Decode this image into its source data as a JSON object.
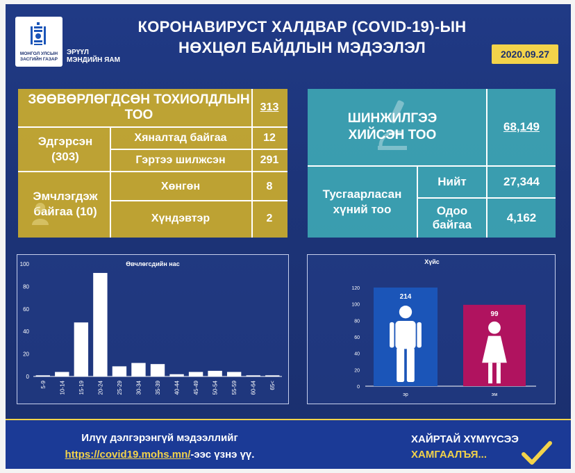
{
  "header": {
    "logo_text": "МОНГОЛ УЛСЫН ЗАСГИЙН ГАЗАР",
    "ministry": [
      "ЭРҮҮЛ",
      "МЭНДИЙН ЯАМ"
    ],
    "title_line1": "КОРОНАВИРУСТ ХАЛДВАР (COVID-19)-ЫН",
    "title_line2": "НӨХЦӨЛ БАЙДЛЫН МЭДЭЭЛЭЛ",
    "date": "2020.09.27"
  },
  "imported": {
    "title": "ЗӨӨВӨРЛӨГДСӨН ТОХИОЛДЛЫН ТОО",
    "total": "313",
    "recovered_label": "Эдгэрсэн (303)",
    "monitored_label": "Хяналтад байгаа",
    "monitored_value": "12",
    "discharged_label": "Гэртээ шилжсэн",
    "discharged_value": "291",
    "treated_label": "Эмчлэгдэж байгаа (10)",
    "mild_label": "Хөнгөн",
    "mild_value": "8",
    "severe_label": "Хүндэвтэр",
    "severe_value": "2"
  },
  "tests": {
    "title": "ШИНЖИЛГЭЭ ХИЙСЭН ТОО",
    "total": "68,149",
    "isolated_label": "Тусгаарласан хүний тоо",
    "all_label": "Нийт",
    "all_value": "27,344",
    "current_label": "Одоо байгаа",
    "current_value": "4,162"
  },
  "colors": {
    "gold": "#c9ab2e",
    "teal": "#3ea8b5",
    "male": "#1b55b8",
    "female": "#b0135f",
    "accent": "#f3d34a"
  },
  "chart_data": [
    {
      "type": "bar",
      "title": "Өвчлөгсдийн нас",
      "categories": [
        "5-9",
        "10-14",
        "15-19",
        "20-24",
        "25-29",
        "30-34",
        "35-39",
        "40-44",
        "45-49",
        "50-54",
        "55-59",
        "60-64",
        "65<"
      ],
      "values": [
        1,
        4,
        48,
        92,
        9,
        12,
        11,
        2,
        4,
        5,
        4,
        1,
        1
      ],
      "ylim": [
        0,
        100
      ],
      "yticks": [
        0,
        20,
        40,
        60,
        80,
        100
      ],
      "color": "#ffffff"
    },
    {
      "type": "bar",
      "title": "Хүйс",
      "categories": [
        "эр",
        "эм"
      ],
      "values": [
        214,
        99
      ],
      "value_labels": [
        "214",
        "99"
      ],
      "ylim": [
        0,
        120
      ],
      "yticks": [
        0,
        20,
        40,
        60,
        80,
        100,
        120
      ],
      "colors": [
        "#1b55b8",
        "#b0135f"
      ],
      "icons": [
        "male-figure-icon",
        "female-figure-icon"
      ]
    }
  ],
  "footer": {
    "line1": "Илүү дэлгэрэнгүй мэдээллийг",
    "link": "https://covid19.mohs.mn/",
    "link_suffix": "-ээс үзнэ үү.",
    "slogan1": "ХАЙРТАЙ ХҮМҮҮСЭЭ",
    "slogan2": "ХАМГААЛЪЯ..."
  }
}
